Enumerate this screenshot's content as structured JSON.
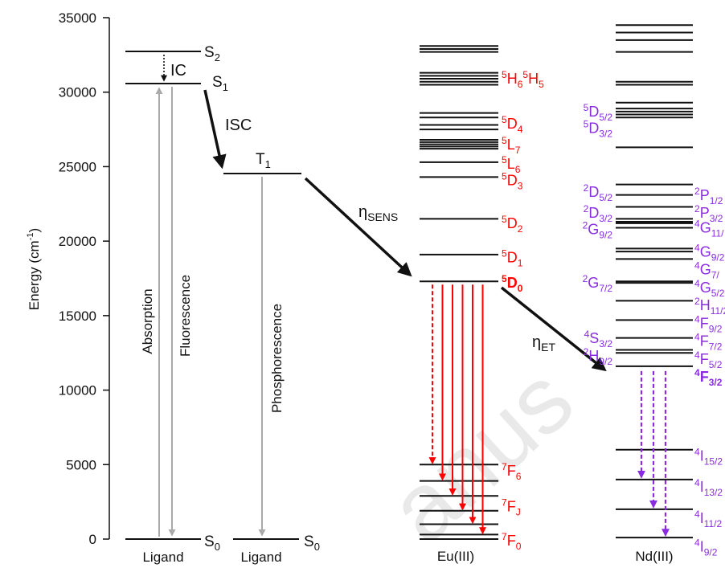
{
  "axis": {
    "ylabel": "Energy (cm",
    "ylabel_sup": "-1",
    "ylabel_tail": ")",
    "ticks": [
      0,
      5000,
      10000,
      15000,
      20000,
      25000,
      30000,
      35000
    ],
    "ymin": 0,
    "ymax": 35000
  },
  "ligand": {
    "levels": [
      {
        "name": "S0",
        "main": "S",
        "sub": "0",
        "energy": 0
      },
      {
        "name": "S1",
        "main": "S",
        "sub": "1",
        "energy": 30800
      },
      {
        "name": "S2",
        "main": "S",
        "sub": "2",
        "energy": 33000
      },
      {
        "name": "T1",
        "main": "T",
        "sub": "1",
        "energy": 24700
      }
    ],
    "ic_label": "IC",
    "isc_label": "ISC",
    "absorption_label": "Absorption",
    "fluorescence_label": "Fluorescence",
    "phosphorescence_label": "Phosphorescence",
    "column_label": "Ligand"
  },
  "transfers": {
    "sens_main": "η",
    "sens_sub": "SENS",
    "et_main": "η",
    "et_sub": "ET"
  },
  "eu": {
    "column_label": "Eu(III)",
    "color": "#ff0000",
    "levels": [
      0,
      300,
      1000,
      1900,
      2900,
      3900,
      5000,
      17300,
      19100,
      21500,
      24300,
      25300,
      26200,
      26350,
      26500,
      26650,
      26800,
      27500,
      27800,
      28300,
      28600,
      30500,
      30700,
      30900,
      31100,
      31300,
      32700,
      32900,
      33100
    ],
    "labels": [
      {
        "sup": "5",
        "main": "H",
        "sub": "6",
        "sup2": "5",
        "main2": "H",
        "sub2": "5",
        "energy": 31000
      },
      {
        "sup": "5",
        "main": "D",
        "sub": "4",
        "energy": 28000
      },
      {
        "sup": "5",
        "main": "L",
        "sub": "7",
        "energy": 26600
      },
      {
        "sup": "5",
        "main": "L",
        "sub": "6",
        "energy": 25300
      },
      {
        "sup": "5",
        "main": "D",
        "sub": "3",
        "energy": 24200
      },
      {
        "sup": "5",
        "main": "D",
        "sub": "2",
        "energy": 21300
      },
      {
        "sup": "5",
        "main": "D",
        "sub": "1",
        "energy": 19000
      },
      {
        "sup": "5",
        "main": "D",
        "sub": "0",
        "energy": 17300,
        "bold": true
      },
      {
        "sup": "7",
        "main": "F",
        "sub": "6",
        "energy": 4700
      },
      {
        "sup": "7",
        "main": "F",
        "sub": "J",
        "energy": 2300
      },
      {
        "sup": "7",
        "main": "F",
        "sub": "0",
        "energy": 0
      }
    ],
    "emission_targets": [
      5000,
      3900,
      2900,
      1900,
      1000,
      300
    ]
  },
  "nd": {
    "column_label": "Nd(III)",
    "color": "#8a2be2",
    "levels": [
      100,
      2000,
      4000,
      6000,
      11600,
      12500,
      12700,
      13500,
      14700,
      16000,
      17200,
      17300,
      18800,
      19300,
      19500,
      20900,
      21200,
      21300,
      21500,
      22300,
      23100,
      23800,
      26300,
      28300,
      28500,
      28700,
      28900,
      29300,
      30500,
      30700,
      32700,
      33500,
      34000,
      34500
    ],
    "left_labels": [
      {
        "sup": "5",
        "main": "D",
        "sub": "5/2",
        "energy": 28800
      },
      {
        "sup": "5",
        "main": "D",
        "sub": "3/2",
        "energy": 27700
      },
      {
        "sup": "2",
        "main": "D",
        "sub": "5/2",
        "energy": 23400
      },
      {
        "sup": "2",
        "main": "D",
        "sub": "3/2",
        "energy": 22000
      },
      {
        "sup": "2",
        "main": "G",
        "sub": "9/2",
        "energy": 20900
      },
      {
        "sup": "2",
        "main": "G",
        "sub": "7/2",
        "energy": 17300
      },
      {
        "sup": "4",
        "main": "S",
        "sub": "3/2",
        "energy": 13600
      },
      {
        "sup": "2",
        "main": "H",
        "sub": "9/2",
        "energy": 12400
      }
    ],
    "right_labels": [
      {
        "sup": "2",
        "main": "P",
        "sub": "1/2",
        "energy": 23200
      },
      {
        "sup": "2",
        "main": "P",
        "sub": "3/2",
        "energy": 22000
      },
      {
        "sup": "4",
        "main": "G",
        "sub": "11/",
        "energy": 21000
      },
      {
        "sup": "4",
        "main": "G",
        "sub": "9/2",
        "energy": 19400
      },
      {
        "sup": "4",
        "main": "G",
        "sub": "7/",
        "energy": 18200
      },
      {
        "sup": "4",
        "main": "G",
        "sub": "5/2",
        "energy": 17000
      },
      {
        "sup": "2",
        "main": "H",
        "sub": "11/2",
        "energy": 15800
      },
      {
        "sup": "4",
        "main": "F",
        "sub": "9/2",
        "energy": 14600
      },
      {
        "sup": "4",
        "main": "F",
        "sub": "7/2",
        "energy": 13400
      },
      {
        "sup": "4",
        "main": "F",
        "sub": "5/2",
        "energy": 12200
      },
      {
        "sup": "4",
        "main": "F",
        "sub": "3/2",
        "energy": 11000,
        "bold": true
      },
      {
        "sup": "4",
        "main": "I",
        "sub": "15/2",
        "energy": 5700
      },
      {
        "sup": "4",
        "main": "I",
        "sub": "13/2",
        "energy": 3600
      },
      {
        "sup": "4",
        "main": "I",
        "sub": "11/2",
        "energy": 1500
      },
      {
        "sup": "4",
        "main": "I",
        "sub": "9/2",
        "energy": -400
      }
    ],
    "emission_targets": [
      4000,
      2000,
      100
    ]
  },
  "watermark": {
    "text": "anus"
  }
}
